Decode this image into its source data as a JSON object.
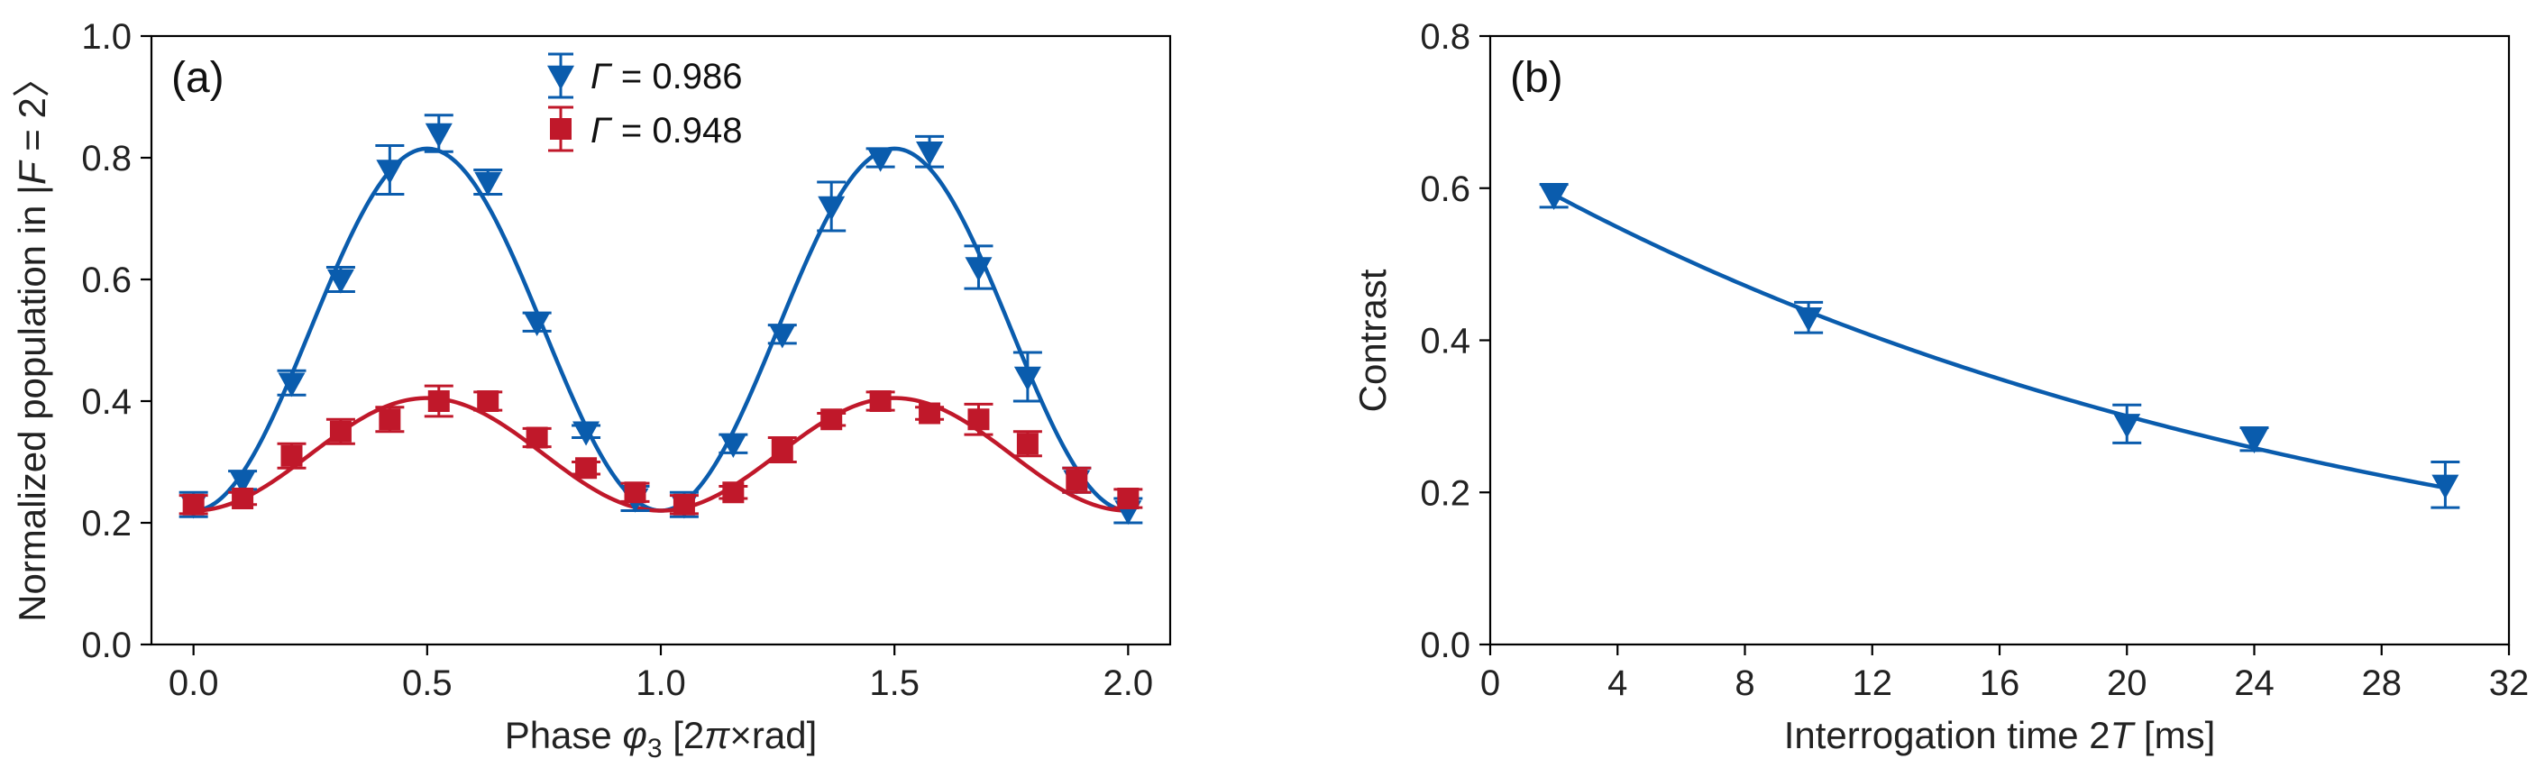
{
  "colors": {
    "blue": "#0a5cad",
    "red": "#c0182a"
  },
  "chart_data": [
    {
      "type": "scatter",
      "panel_label": "(a)",
      "xlabel_parts": [
        "Phase ",
        "φ",
        "3",
        " [2",
        "π",
        "×rad]"
      ],
      "ylabel_parts": [
        "Normalized population in |",
        "F",
        " = 2〉"
      ],
      "xlim": [
        -0.09,
        2.09
      ],
      "ylim": [
        0.0,
        1.0
      ],
      "x_ticks": [
        0.0,
        0.5,
        1.0,
        1.5,
        2.0
      ],
      "x_tick_labels": [
        "0.0",
        "0.5",
        "1.0",
        "1.5",
        "2.0"
      ],
      "y_ticks": [
        0.0,
        0.2,
        0.4,
        0.6,
        0.8,
        1.0
      ],
      "y_tick_labels": [
        "0.0",
        "0.2",
        "0.4",
        "0.6",
        "0.8",
        "1.0"
      ],
      "series": [
        {
          "name": "Γ = 0.986",
          "legend_symbol": "Γ",
          "legend_value": " = 0.986",
          "marker": "triangle-down",
          "color": "#0a5cad",
          "x": [
            0.0,
            0.105,
            0.21,
            0.315,
            0.42,
            0.525,
            0.63,
            0.735,
            0.84,
            0.945,
            1.05,
            1.155,
            1.26,
            1.365,
            1.47,
            1.575,
            1.68,
            1.785,
            1.89,
            2.0
          ],
          "y": [
            0.23,
            0.27,
            0.43,
            0.6,
            0.78,
            0.84,
            0.76,
            0.53,
            0.35,
            0.24,
            0.23,
            0.33,
            0.51,
            0.72,
            0.8,
            0.81,
            0.62,
            0.44,
            0.27,
            0.22
          ],
          "err": [
            0.02,
            0.015,
            0.02,
            0.02,
            0.04,
            0.03,
            0.02,
            0.015,
            0.01,
            0.02,
            0.02,
            0.015,
            0.015,
            0.04,
            0.015,
            0.025,
            0.035,
            0.04,
            0.02,
            0.02
          ],
          "fit": {
            "offset": 0.5175,
            "amplitude": 0.2975,
            "phase_shift": 0.0
          }
        },
        {
          "name": "Γ = 0.948",
          "legend_symbol": "Γ",
          "legend_value": " = 0.948",
          "marker": "square",
          "color": "#c0182a",
          "x": [
            0.0,
            0.105,
            0.21,
            0.315,
            0.42,
            0.525,
            0.63,
            0.735,
            0.84,
            0.945,
            1.05,
            1.155,
            1.26,
            1.365,
            1.47,
            1.575,
            1.68,
            1.785,
            1.89,
            2.0
          ],
          "y": [
            0.23,
            0.24,
            0.31,
            0.35,
            0.37,
            0.4,
            0.4,
            0.34,
            0.29,
            0.25,
            0.23,
            0.25,
            0.32,
            0.37,
            0.4,
            0.38,
            0.37,
            0.33,
            0.27,
            0.24
          ],
          "err": [
            0.015,
            0.01,
            0.02,
            0.02,
            0.02,
            0.025,
            0.015,
            0.015,
            0.01,
            0.015,
            0.015,
            0.01,
            0.02,
            0.01,
            0.015,
            0.01,
            0.025,
            0.02,
            0.02,
            0.015
          ],
          "fit": {
            "offset": 0.3125,
            "amplitude": 0.0925,
            "phase_shift": 0.0
          }
        }
      ]
    },
    {
      "type": "scatter",
      "panel_label": "(b)",
      "xlabel_parts": [
        "Interrogation time 2",
        "T",
        " [ms]"
      ],
      "ylabel": "Contrast",
      "xlim": [
        0,
        32
      ],
      "ylim": [
        0.0,
        0.8
      ],
      "x_ticks": [
        0,
        4,
        8,
        12,
        16,
        20,
        24,
        28,
        32
      ],
      "x_tick_labels": [
        "0",
        "4",
        "8",
        "12",
        "16",
        "20",
        "24",
        "28",
        "32"
      ],
      "y_ticks": [
        0.0,
        0.2,
        0.4,
        0.6,
        0.8
      ],
      "y_tick_labels": [
        "0.0",
        "0.2",
        "0.4",
        "0.6",
        "0.8"
      ],
      "series": [
        {
          "name": "Contrast",
          "marker": "triangle-down",
          "color": "#0a5cad",
          "x": [
            2,
            10,
            20,
            24,
            30
          ],
          "y": [
            0.59,
            0.43,
            0.29,
            0.27,
            0.21
          ],
          "err": [
            0.015,
            0.02,
            0.025,
            0.015,
            0.03
          ],
          "fit": {
            "type": "exponential",
            "A": 0.6379,
            "tau": 26.55
          }
        }
      ]
    }
  ]
}
